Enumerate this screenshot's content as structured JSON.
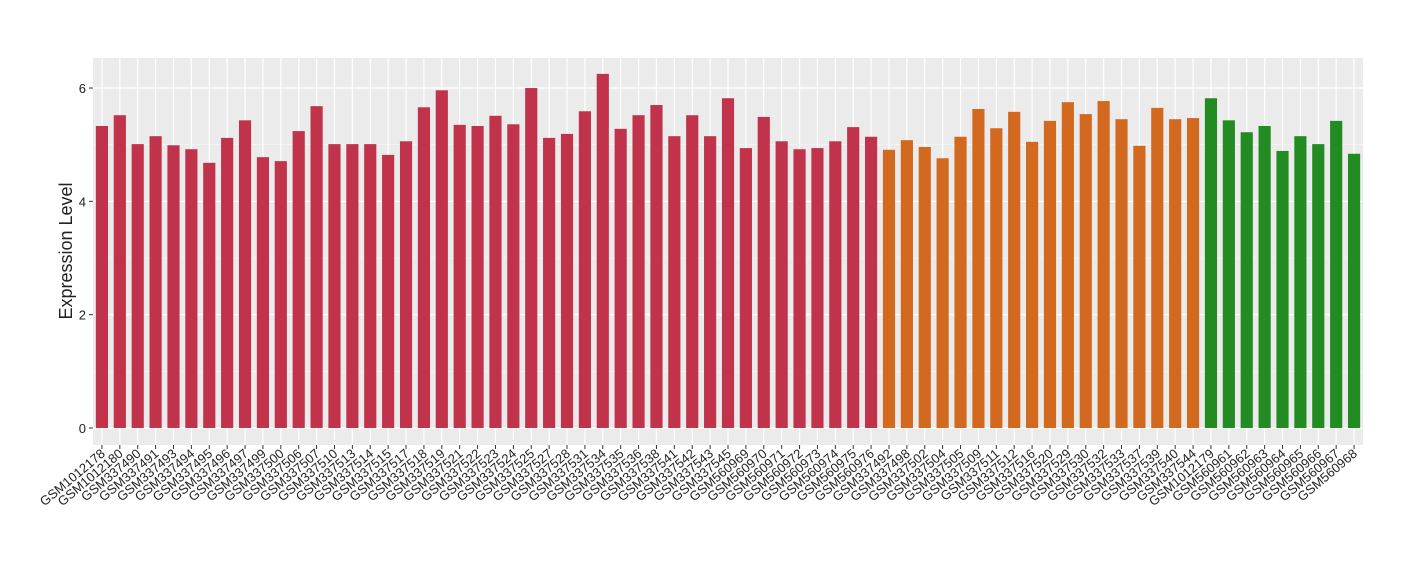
{
  "chart_data": {
    "type": "bar",
    "y_label": "Expression Level",
    "ylim": [
      -0.3,
      6.53
    ],
    "yticks": [
      0,
      2,
      4,
      6
    ],
    "grid": true,
    "series": [
      {
        "color": "#c0334a",
        "categories": [
          "GSM1012178",
          "GSM1012180",
          "GSM337490",
          "GSM337491",
          "GSM337493",
          "GSM337494",
          "GSM337495",
          "GSM337496",
          "GSM337497",
          "GSM337499",
          "GSM337500",
          "GSM337506",
          "GSM337507",
          "GSM337510",
          "GSM337513",
          "GSM337514",
          "GSM337515",
          "GSM337517",
          "GSM337518",
          "GSM337519",
          "GSM337521",
          "GSM337522",
          "GSM337523",
          "GSM337524",
          "GSM337525",
          "GSM337527",
          "GSM337528",
          "GSM337531",
          "GSM337534",
          "GSM337535",
          "GSM337536",
          "GSM337538",
          "GSM337541",
          "GSM337542",
          "GSM337543",
          "GSM337545",
          "GSM560969",
          "GSM560970",
          "GSM560971",
          "GSM560972",
          "GSM560973",
          "GSM560974",
          "GSM560975",
          "GSM560976"
        ],
        "values": [
          5.33,
          5.52,
          5.01,
          5.15,
          4.99,
          4.92,
          4.68,
          5.12,
          5.43,
          4.78,
          4.71,
          5.24,
          5.68,
          5.01,
          5.01,
          5.01,
          4.82,
          5.06,
          5.66,
          5.96,
          5.35,
          5.33,
          5.51,
          5.36,
          6.0,
          5.12,
          5.19,
          5.59,
          6.25,
          5.28,
          5.52,
          5.7,
          5.15,
          5.52,
          5.15,
          5.82,
          4.94,
          5.49,
          5.06,
          4.92,
          4.94,
          5.06,
          5.31,
          5.14
        ]
      },
      {
        "color": "#d2691e",
        "categories": [
          "GSM337492",
          "GSM337498",
          "GSM337502",
          "GSM337504",
          "GSM337505",
          "GSM337509",
          "GSM337511",
          "GSM337512",
          "GSM337516",
          "GSM337520",
          "GSM337529",
          "GSM337530",
          "GSM337532",
          "GSM337533",
          "GSM337537",
          "GSM337539",
          "GSM337540",
          "GSM337544"
        ],
        "values": [
          4.91,
          5.08,
          4.96,
          4.76,
          5.14,
          5.63,
          5.29,
          5.58,
          5.05,
          5.42,
          5.75,
          5.54,
          5.77,
          5.45,
          4.98,
          5.65,
          5.45,
          5.47
        ]
      },
      {
        "color": "#228b22",
        "categories": [
          "GSM1012179",
          "GSM560961",
          "GSM560962",
          "GSM560963",
          "GSM560964",
          "GSM560965",
          "GSM560966",
          "GSM560967",
          "GSM560968"
        ],
        "values": [
          5.82,
          5.43,
          5.22,
          5.33,
          4.89,
          5.15,
          5.01,
          5.42,
          4.84
        ]
      }
    ]
  }
}
